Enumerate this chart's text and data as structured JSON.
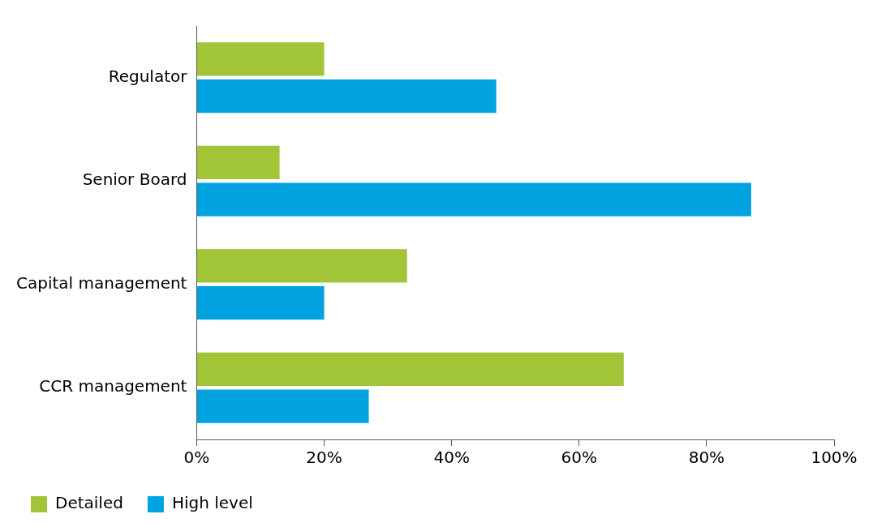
{
  "chart_data": {
    "type": "bar",
    "orientation": "horizontal",
    "categories": [
      "Regulator",
      "Senior Board",
      "Capital management",
      "CCR management"
    ],
    "series": [
      {
        "name": "Detailed",
        "color": "#a2c437",
        "values": [
          20,
          13,
          33,
          67
        ]
      },
      {
        "name": "High level",
        "color": "#00a3e0",
        "values": [
          47,
          87,
          20,
          27
        ]
      }
    ],
    "xlim": [
      0,
      100
    ],
    "xticks": [
      {
        "value": 0,
        "label": "0%"
      },
      {
        "value": 20,
        "label": "20%"
      },
      {
        "value": 40,
        "label": "40%"
      },
      {
        "value": 60,
        "label": "60%"
      },
      {
        "value": 80,
        "label": "80%"
      },
      {
        "value": 100,
        "label": "100%"
      }
    ],
    "grid": false,
    "legend": "bottom left"
  }
}
